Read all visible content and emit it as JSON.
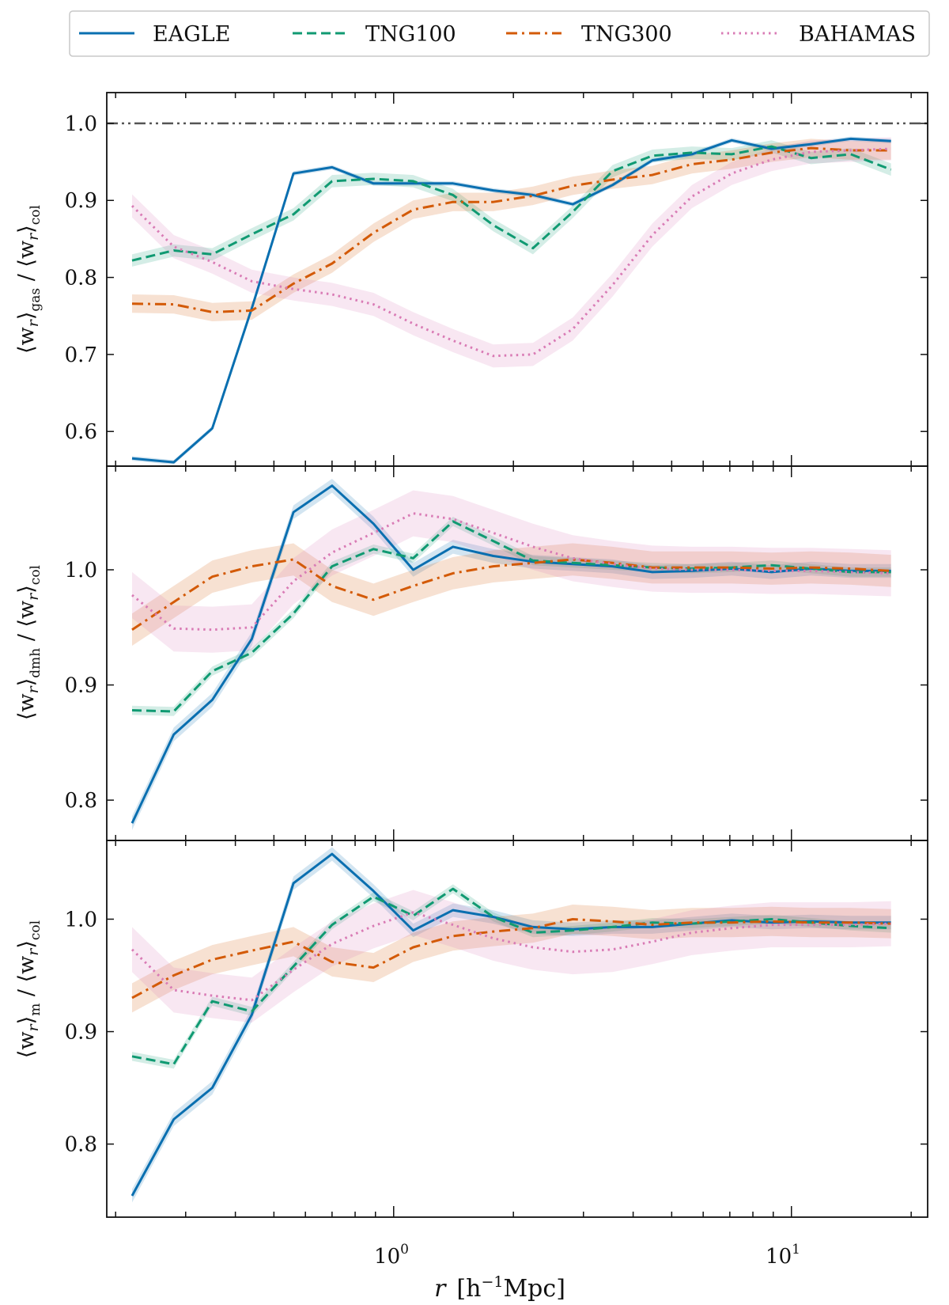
{
  "legend": {
    "entries": [
      {
        "key": "eagle",
        "label": "EAGLE",
        "color": "#0a6fb0",
        "dash": "solid"
      },
      {
        "key": "tng100",
        "label": "TNG100",
        "color": "#109a72",
        "dash": "dashed"
      },
      {
        "key": "tng300",
        "label": "TNG300",
        "color": "#d35a07",
        "dash": "dashdot"
      },
      {
        "key": "bahamas",
        "label": "BAHAMAS",
        "color": "#d97bb5",
        "dash": "dotted"
      }
    ]
  },
  "xaxis": {
    "label_r": "r",
    "label_units": "[h",
    "label_exp": "−1",
    "label_rest": "Mpc]",
    "scale": "log",
    "xlim": [
      0.19,
      22
    ],
    "major_ticks": [
      {
        "value": 1,
        "base": "10",
        "exp": "0"
      },
      {
        "value": 10,
        "base": "10",
        "exp": "1"
      }
    ]
  },
  "chart_data": [
    {
      "type": "line",
      "panel": "gas",
      "ylabel": {
        "main": "⟨w",
        "sub_r": "r",
        "close": "⟩",
        "sub": "gas",
        "sep": " / ",
        "main2": "⟨w",
        "sub_r2": "r",
        "close2": "⟩",
        "sub2": "col"
      },
      "ylim": [
        0.555,
        1.04
      ],
      "yticks": [
        0.6,
        0.7,
        0.8,
        0.9,
        1.0
      ],
      "ytick_labels": [
        "0.6",
        "0.7",
        "0.8",
        "0.9",
        "1.0"
      ],
      "reference_line": 1.0,
      "x": [
        0.22,
        0.28,
        0.35,
        0.44,
        0.56,
        0.7,
        0.89,
        1.12,
        1.41,
        1.78,
        2.24,
        2.82,
        3.55,
        4.47,
        5.62,
        7.08,
        8.91,
        11.2,
        14.1,
        17.8
      ],
      "series": [
        {
          "name": "EAGLE",
          "values": [
            0.565,
            0.56,
            0.604,
            0.76,
            0.935,
            0.943,
            0.922,
            0.922,
            0.922,
            0.913,
            0.907,
            0.895,
            0.92,
            0.952,
            0.96,
            0.978,
            0.967,
            0.973,
            0.98,
            0.977
          ],
          "band": 0.003
        },
        {
          "name": "TNG100",
          "values": [
            0.822,
            0.835,
            0.83,
            0.856,
            0.882,
            0.925,
            0.928,
            0.925,
            0.907,
            0.868,
            0.838,
            0.885,
            0.938,
            0.958,
            0.962,
            0.96,
            0.97,
            0.955,
            0.96,
            0.94
          ],
          "band": 0.008
        },
        {
          "name": "TNG300",
          "values": [
            0.766,
            0.765,
            0.755,
            0.757,
            0.792,
            0.818,
            0.858,
            0.888,
            0.898,
            0.898,
            0.906,
            0.919,
            0.927,
            0.933,
            0.947,
            0.953,
            0.962,
            0.968,
            0.965,
            0.965
          ],
          "band": 0.012
        },
        {
          "name": "BAHAMAS",
          "values": [
            0.893,
            0.84,
            0.82,
            0.795,
            0.785,
            0.778,
            0.765,
            0.74,
            0.718,
            0.698,
            0.7,
            0.733,
            0.79,
            0.855,
            0.905,
            0.935,
            0.953,
            0.963,
            0.965,
            0.967
          ],
          "band": 0.015
        }
      ]
    },
    {
      "type": "line",
      "panel": "dmh",
      "ylabel": {
        "main": "⟨w",
        "sub_r": "r",
        "close": "⟩",
        "sub": "dmh",
        "sep": " / ",
        "main2": "⟨w",
        "sub_r2": "r",
        "close2": "⟩",
        "sub2": "col"
      },
      "ylim": [
        0.765,
        1.09
      ],
      "yticks": [
        0.8,
        0.9,
        1.0
      ],
      "ytick_labels": [
        "0.8",
        "0.9",
        "1.0"
      ],
      "x": [
        0.22,
        0.28,
        0.35,
        0.44,
        0.56,
        0.7,
        0.89,
        1.12,
        1.41,
        1.78,
        2.24,
        2.82,
        3.55,
        4.47,
        5.62,
        7.08,
        8.91,
        11.2,
        14.1,
        17.8
      ],
      "series": [
        {
          "name": "EAGLE",
          "values": [
            0.78,
            0.857,
            0.887,
            0.94,
            1.05,
            1.073,
            1.04,
            1.0,
            1.02,
            1.012,
            1.007,
            1.005,
            1.003,
            0.998,
            0.999,
            1.001,
            0.998,
            1.001,
            0.999,
            0.999
          ],
          "band": 0.006
        },
        {
          "name": "TNG100",
          "values": [
            0.878,
            0.877,
            0.912,
            0.928,
            0.962,
            1.003,
            1.018,
            1.01,
            1.042,
            1.025,
            1.008,
            1.006,
            1.004,
            1.002,
            1.001,
            1.002,
            1.004,
            1.001,
            0.998,
            0.998
          ],
          "band": 0.004
        },
        {
          "name": "TNG300",
          "values": [
            0.948,
            0.972,
            0.994,
            1.003,
            1.009,
            0.986,
            0.974,
            0.986,
            0.997,
            1.003,
            1.006,
            1.009,
            1.006,
            1.002,
            1.002,
            1.002,
            1.001,
            1.002,
            1.001,
            0.999
          ],
          "band": 0.014
        },
        {
          "name": "BAHAMAS",
          "values": [
            0.978,
            0.949,
            0.948,
            0.95,
            0.99,
            1.015,
            1.032,
            1.049,
            1.044,
            1.032,
            1.02,
            1.01,
            1.005,
            1.001,
            1.0,
            1.0,
            0.999,
            0.999,
            0.998,
            0.997
          ],
          "band": 0.02
        }
      ]
    },
    {
      "type": "line",
      "panel": "m",
      "ylabel": {
        "main": "⟨w",
        "sub_r": "r",
        "close": "⟩",
        "sub": "m",
        "sep": " / ",
        "main2": "⟨w",
        "sub_r2": "r",
        "close2": "⟩",
        "sub2": "col"
      },
      "ylim": [
        0.735,
        1.07
      ],
      "yticks": [
        0.8,
        0.9,
        1.0
      ],
      "ytick_labels": [
        "0.8",
        "0.9",
        "1.0"
      ],
      "x": [
        0.22,
        0.28,
        0.35,
        0.44,
        0.56,
        0.7,
        0.89,
        1.12,
        1.41,
        1.78,
        2.24,
        2.82,
        3.55,
        4.47,
        5.62,
        7.08,
        8.91,
        11.2,
        14.1,
        17.8
      ],
      "series": [
        {
          "name": "EAGLE",
          "values": [
            0.754,
            0.822,
            0.85,
            0.915,
            1.032,
            1.058,
            1.025,
            0.99,
            1.008,
            1.002,
            0.993,
            0.991,
            0.993,
            0.993,
            0.996,
            0.999,
            0.997,
            0.998,
            0.997,
            0.997
          ],
          "band": 0.006
        },
        {
          "name": "TNG100",
          "values": [
            0.878,
            0.871,
            0.927,
            0.918,
            0.958,
            0.995,
            1.02,
            1.003,
            1.027,
            1.002,
            0.988,
            0.99,
            0.993,
            0.997,
            0.996,
            0.998,
            1.0,
            0.997,
            0.994,
            0.992
          ],
          "band": 0.004
        },
        {
          "name": "TNG300",
          "values": [
            0.93,
            0.95,
            0.964,
            0.972,
            0.98,
            0.962,
            0.957,
            0.975,
            0.985,
            0.989,
            0.992,
            1.0,
            0.998,
            0.995,
            0.997,
            0.997,
            0.998,
            0.997,
            0.997,
            0.996
          ],
          "band": 0.013
        },
        {
          "name": "BAHAMAS",
          "values": [
            0.973,
            0.937,
            0.932,
            0.928,
            0.955,
            0.978,
            0.994,
            1.006,
            0.995,
            0.983,
            0.975,
            0.971,
            0.973,
            0.98,
            0.988,
            0.992,
            0.995,
            0.995,
            0.995,
            0.996
          ],
          "band": 0.02
        }
      ]
    }
  ]
}
